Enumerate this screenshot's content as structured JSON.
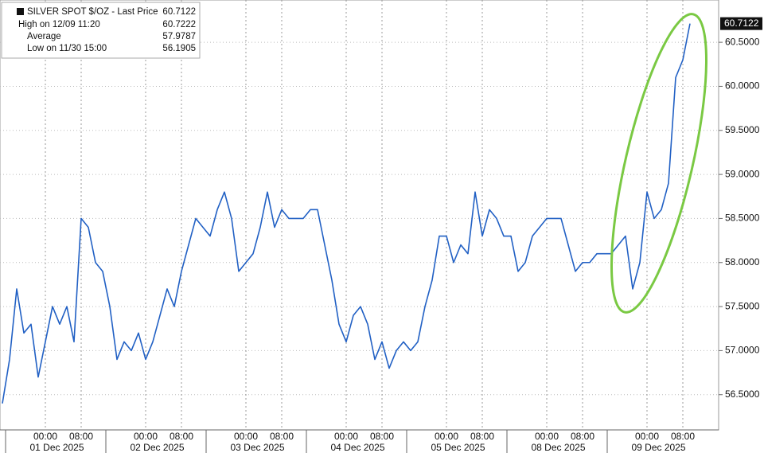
{
  "chart_data": {
    "type": "line",
    "legend": {
      "title": "SILVER SPOT $/OZ - Last Price",
      "rows": [
        {
          "label": "High on 12/09 11:20",
          "value": 60.7222
        },
        {
          "label": "Average",
          "value": 57.9787
        },
        {
          "label": "Low on 11/30 15:00",
          "value": 56.1905
        }
      ]
    },
    "categories": [
      null,
      null,
      null,
      null,
      null,
      null,
      "00:00",
      null,
      null,
      null,
      null,
      "08:00",
      null,
      null,
      null,
      null,
      null,
      null,
      null,
      null,
      "00:00",
      null,
      null,
      null,
      null,
      "08:00",
      null,
      null,
      null,
      null,
      null,
      null,
      null,
      null,
      "00:00",
      null,
      null,
      null,
      null,
      "08:00",
      null,
      null,
      null,
      null,
      null,
      null,
      null,
      null,
      "00:00",
      null,
      null,
      null,
      null,
      "08:00",
      null,
      null,
      null,
      null,
      null,
      null,
      null,
      null,
      "00:00",
      null,
      null,
      null,
      null,
      "08:00",
      null,
      null,
      null,
      null,
      null,
      null,
      null,
      null,
      "00:00",
      null,
      null,
      null,
      null,
      "08:00",
      null,
      null,
      null,
      null,
      null,
      null,
      null,
      null,
      "00:00",
      null,
      null,
      null,
      null,
      "08:00",
      null
    ],
    "dates": [
      "01 Dec 2025",
      "02 Dec 2025",
      "03 Dec 2025",
      "04 Dec 2025",
      "05 Dec 2025",
      "08 Dec 2025",
      "09 Dec 2025"
    ],
    "series": [
      {
        "name": "SILVER SPOT $/OZ - Last Price",
        "color": "#2160c4",
        "values": [
          56.4,
          56.9,
          57.7,
          57.2,
          57.3,
          56.7,
          57.1,
          57.5,
          57.3,
          57.5,
          57.1,
          58.5,
          58.4,
          58.0,
          57.9,
          57.5,
          56.9,
          57.1,
          57.0,
          57.2,
          56.9,
          57.1,
          57.4,
          57.7,
          57.5,
          57.9,
          58.2,
          58.5,
          58.4,
          58.3,
          58.6,
          58.8,
          58.5,
          57.9,
          58.0,
          58.1,
          58.4,
          58.8,
          58.4,
          58.6,
          58.5,
          58.5,
          58.5,
          58.6,
          58.6,
          58.2,
          57.8,
          57.3,
          57.1,
          57.4,
          57.5,
          57.3,
          56.9,
          57.1,
          56.8,
          57.0,
          57.1,
          57.0,
          57.1,
          57.5,
          57.8,
          58.3,
          58.3,
          58.0,
          58.2,
          58.1,
          58.8,
          58.3,
          58.6,
          58.5,
          58.3,
          58.3,
          57.9,
          58.0,
          58.3,
          58.4,
          58.5,
          58.5,
          58.5,
          58.2,
          57.9,
          58.0,
          58.0,
          58.1,
          58.1,
          58.1,
          58.2,
          58.3,
          57.7,
          58.0,
          58.8,
          58.5,
          58.6,
          58.9,
          60.1,
          60.3,
          60.7122
        ]
      }
    ],
    "ylim": [
      56.1,
      60.98
    ],
    "yticks": [
      {
        "value": 56.5,
        "label": "56.5000"
      },
      {
        "value": 57,
        "label": "57.0000"
      },
      {
        "value": 57.5,
        "label": "57.5000"
      },
      {
        "value": 58,
        "label": "58.0000"
      },
      {
        "value": 58.5,
        "label": "58.5000"
      },
      {
        "value": 59,
        "label": "59.0000"
      },
      {
        "value": 59.5,
        "label": "59.5000"
      },
      {
        "value": 60,
        "label": "60.0000"
      },
      {
        "value": 60.5,
        "label": "60.5000"
      }
    ],
    "grid": true
  }
}
